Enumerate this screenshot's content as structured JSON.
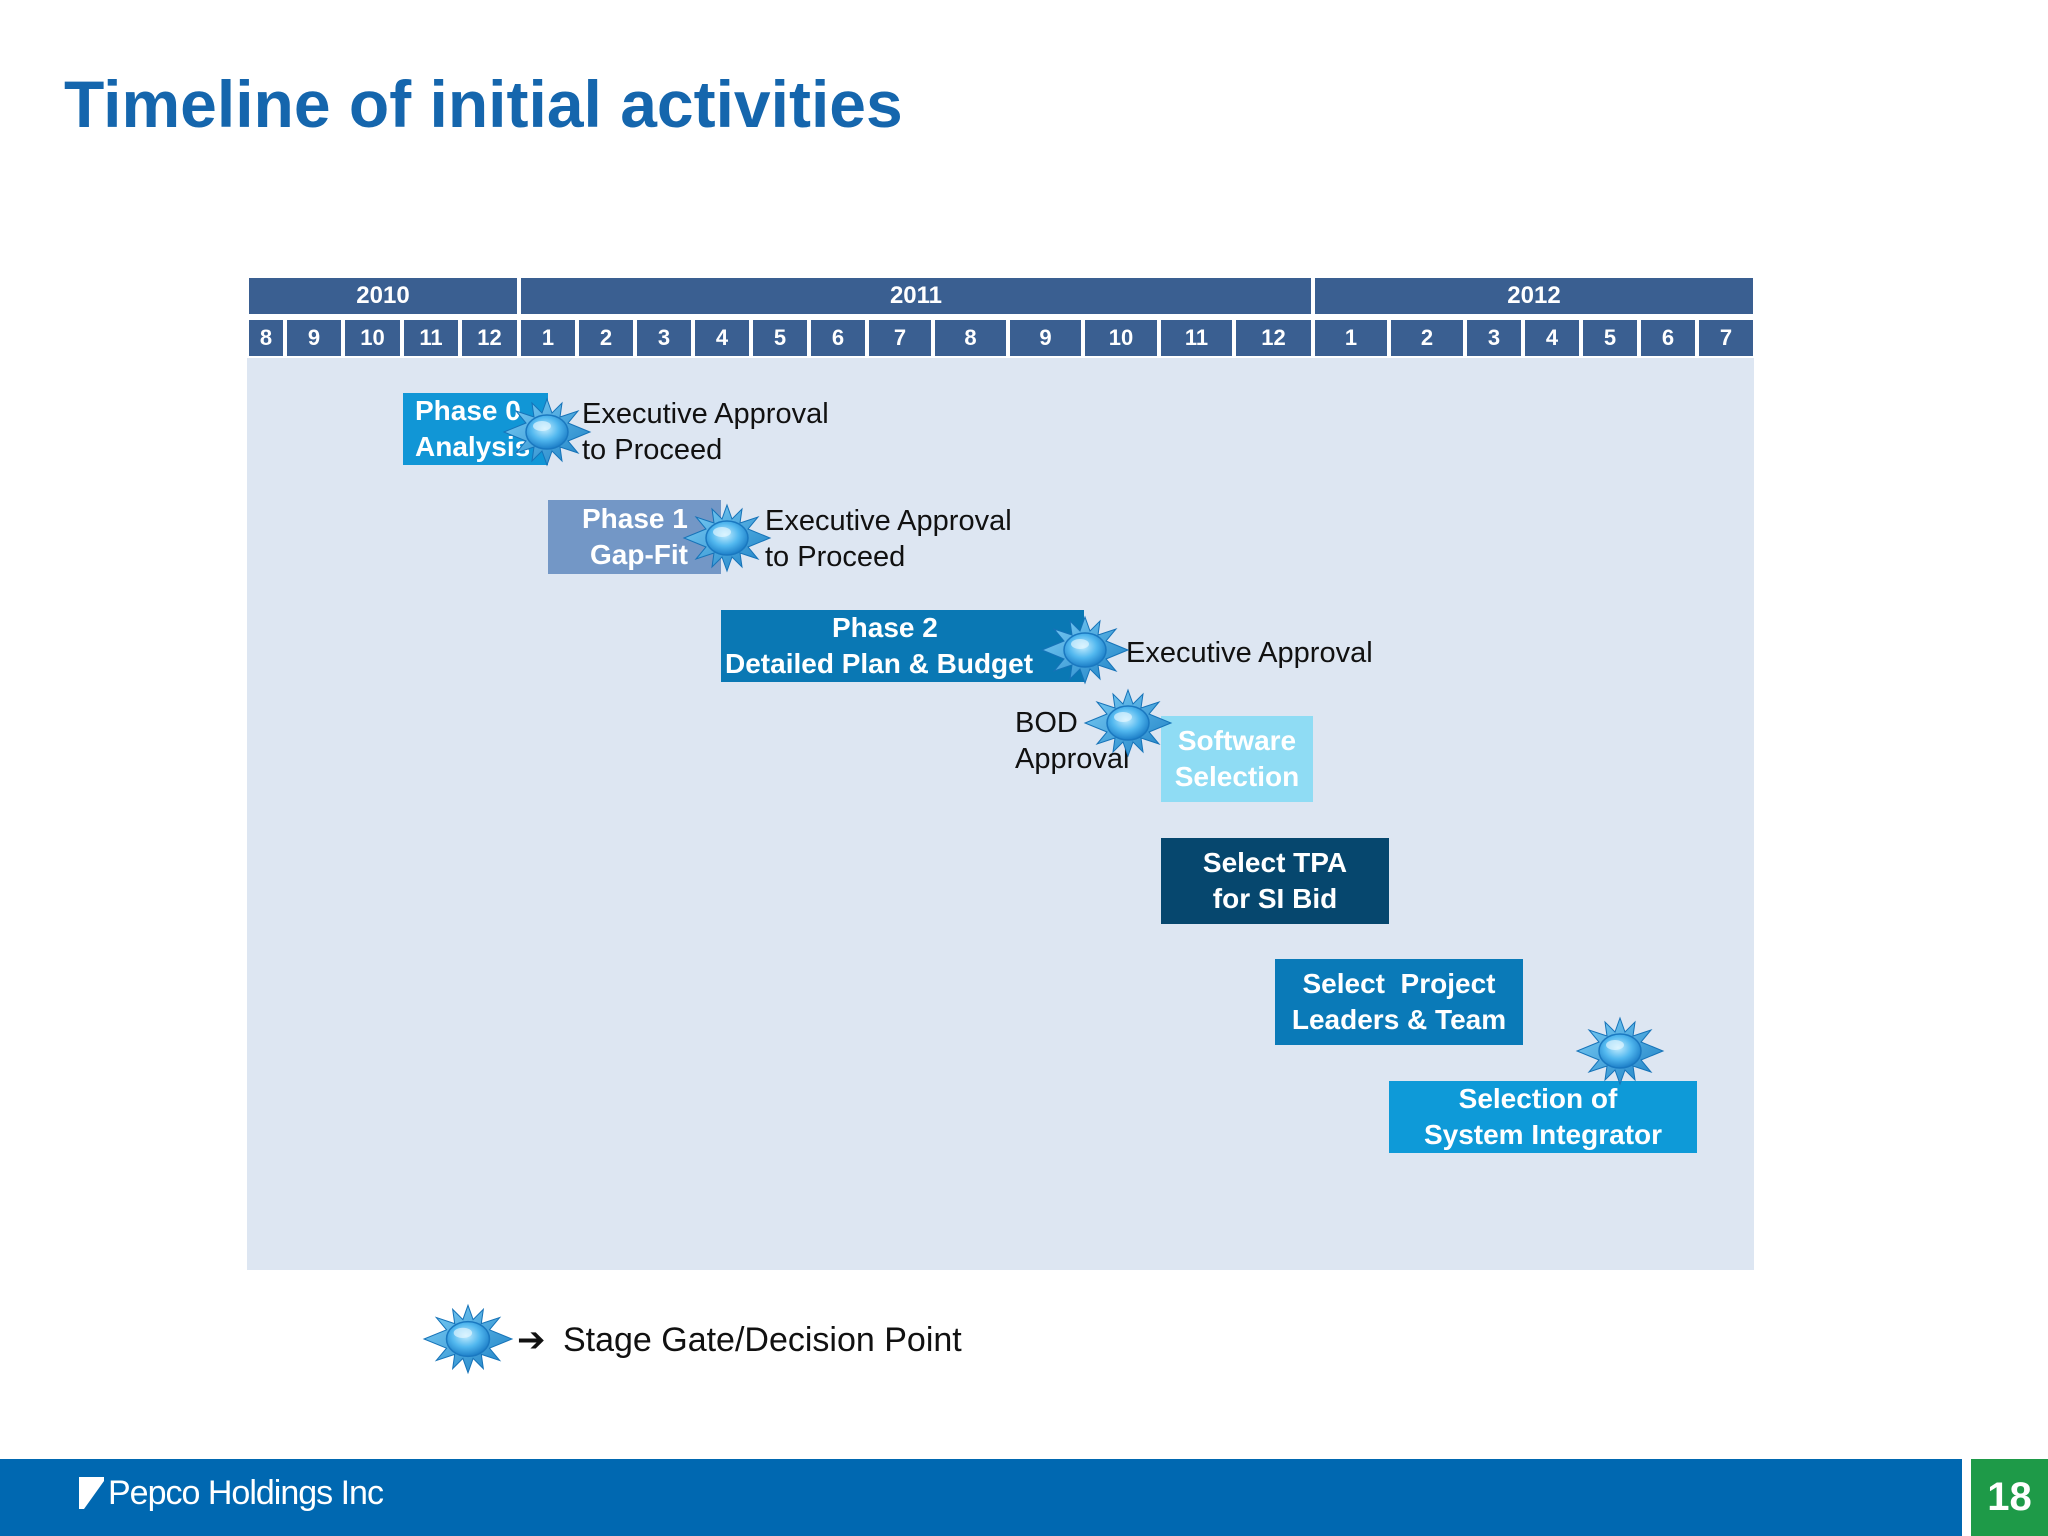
{
  "title": "Timeline of initial activities",
  "years": [
    "2010",
    "2011",
    "2012"
  ],
  "months": [
    "8",
    "9",
    "10",
    "11",
    "12",
    "1",
    "2",
    "3",
    "4",
    "5",
    "6",
    "7",
    "8",
    "9",
    "10",
    "11",
    "12",
    "1",
    "2",
    "3",
    "4",
    "5",
    "6",
    "7"
  ],
  "tasks": {
    "phase0": {
      "line1": "Phase 0",
      "line2": "Analysis"
    },
    "phase1": {
      "line1": "Phase 1",
      "line2": "Gap-Fit"
    },
    "phase2": {
      "line1": "Phase 2",
      "line2": "Detailed Plan & Budget"
    },
    "software": {
      "line1": "Software",
      "line2": "Selection"
    },
    "tpa": {
      "line1": "Select TPA",
      "line2": "for SI Bid"
    },
    "leaders": {
      "line1": "Select  Project",
      "line2": "Leaders & Team"
    },
    "integrator": {
      "line1": "Selection of",
      "line2": "System Integrator"
    }
  },
  "labels": {
    "approval1": {
      "line1": "Executive Approval",
      "line2": "to Proceed"
    },
    "approval2": {
      "line1": "Executive Approval",
      "line2": "to Proceed"
    },
    "approval3": "Executive Approval",
    "bod": {
      "line1": "BOD",
      "line2": "Approval"
    }
  },
  "legend": {
    "arrow": "➔",
    "text": "Stage Gate/Decision Point"
  },
  "footer": {
    "company": "Pepco Holdings Inc",
    "page": "18"
  },
  "colors": {
    "header": "#3a5f91",
    "timeline_bg": "#dde6f2",
    "phase0": "#1196d6",
    "phase1": "#7397c6",
    "phase2": "#0a78b4",
    "software": "#8fdcf4",
    "tpa": "#06476e",
    "leaders": "#0a7ab8",
    "integrator": "#0e9ad8",
    "footer": "#0068b1",
    "page_box": "#1e9a48"
  }
}
